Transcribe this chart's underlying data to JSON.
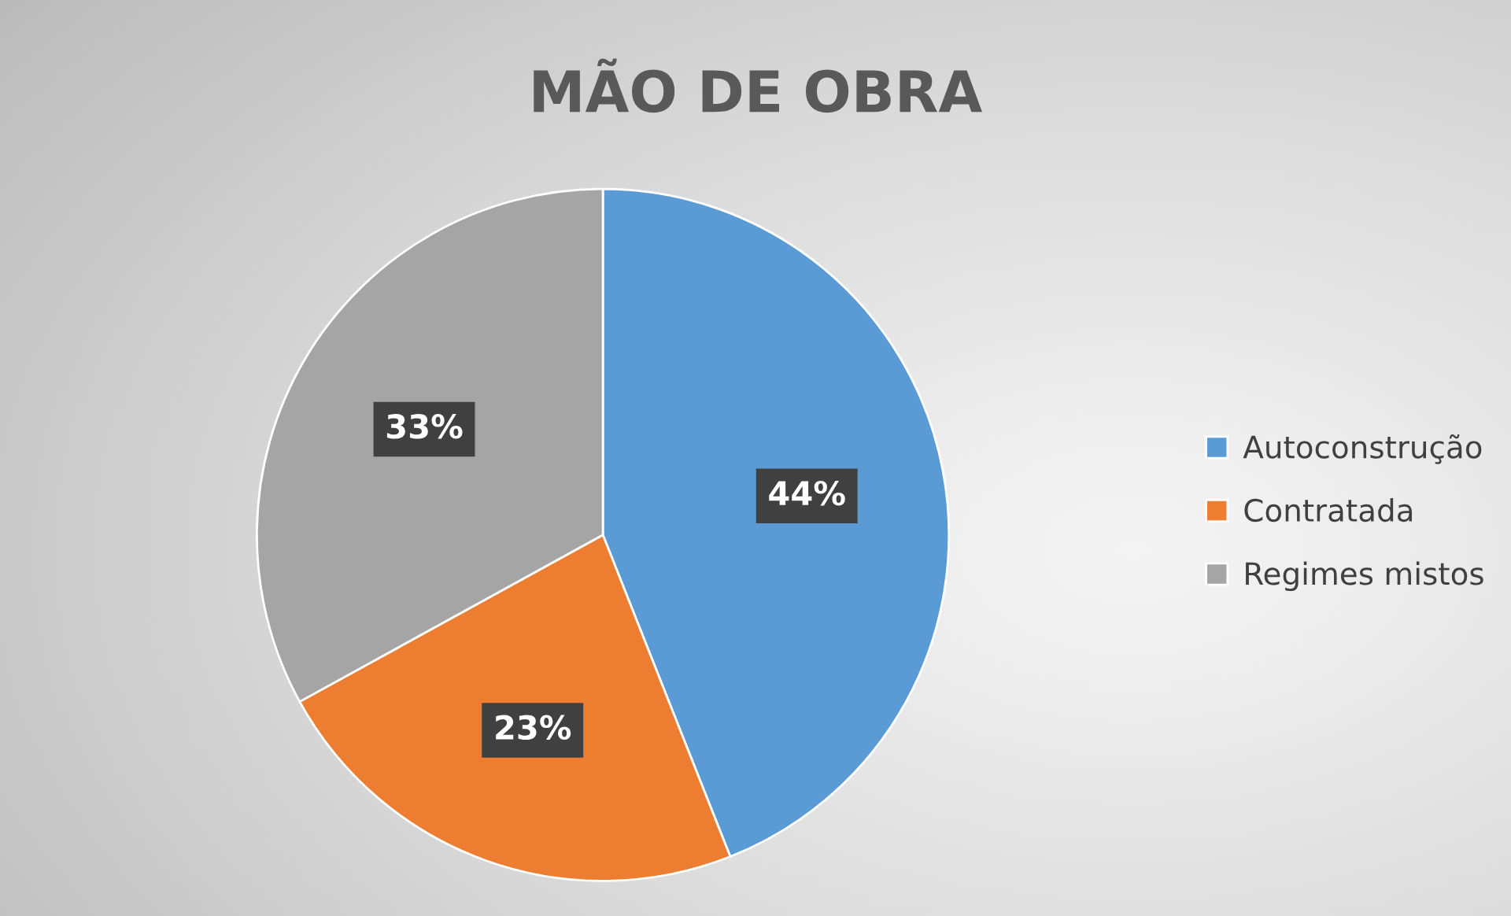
{
  "chart_data": {
    "type": "pie",
    "title": "MÃO DE OBRA",
    "categories": [
      "Autoconstrução",
      "Contratada",
      "Regimes mistos"
    ],
    "values": [
      44,
      23,
      33
    ],
    "colors": [
      "#5b9bd5",
      "#ed7d31",
      "#a5a5a5"
    ],
    "value_labels": [
      "44%",
      "23%",
      "33%"
    ],
    "legend": "right"
  }
}
